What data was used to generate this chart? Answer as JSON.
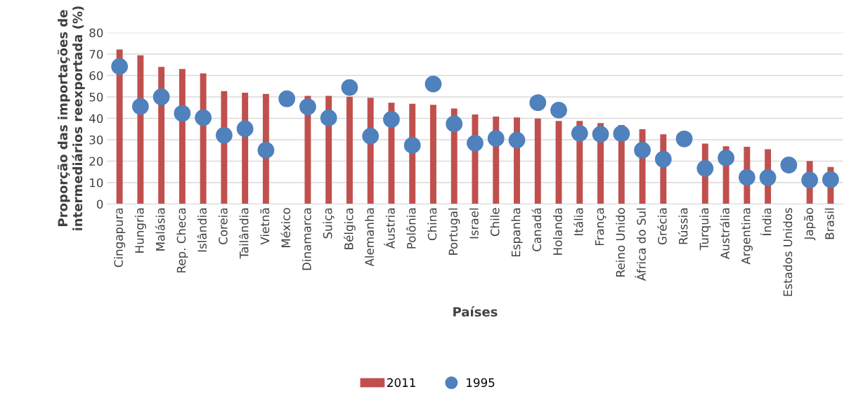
{
  "chart_data": {
    "type": "bar",
    "xlabel": "Países",
    "ylabel": "Proporção das importações de\nintermediários reexportada (%)",
    "categories": [
      "Cingapura",
      "Hungria",
      "Malásia",
      "Rep. Checa",
      "Islândia",
      "Coreia",
      "Tailândia",
      "Vietnã",
      "México",
      "Dinamarca",
      "Suiça",
      "Bélgica",
      "Alemanha",
      "Áustria",
      "Polônia",
      "China",
      "Portugal",
      "Israel",
      "Chile",
      "Espanha",
      "Canadá",
      "Holanda",
      "Itália",
      "França",
      "Reino Unido",
      "África do Sul",
      "Grécia",
      "Rússia",
      "Turquia",
      "Austrália",
      "Argentina",
      "Índia",
      "Estados Unidos",
      "Japão",
      "Brasil"
    ],
    "series": [
      {
        "name": "2011",
        "color": "#c0504d",
        "values": [
          72.1,
          69.4,
          64.0,
          63.0,
          61.0,
          52.7,
          52.0,
          51.4,
          null,
          50.5,
          50.5,
          50.1,
          49.6,
          47.3,
          46.8,
          46.3,
          44.6,
          41.8,
          40.8,
          40.4,
          39.9,
          38.8,
          38.8,
          37.8,
          36.9,
          34.9,
          32.5,
          null,
          28.2,
          27.0,
          26.7,
          25.6,
          null,
          20.1,
          17.3
        ]
      },
      {
        "name": "1995",
        "type": "scatter",
        "color": "#4f81bd",
        "marker": "circle",
        "values": [
          64.2,
          45.5,
          50.0,
          42.3,
          40.3,
          32.1,
          35.1,
          25.1,
          49.1,
          45.4,
          40.2,
          54.4,
          31.7,
          39.5,
          27.4,
          56.0,
          37.4,
          28.4,
          30.6,
          29.8,
          47.3,
          43.8,
          33.0,
          32.6,
          32.8,
          25.1,
          20.9,
          30.4,
          16.6,
          21.5,
          12.4,
          12.3,
          18.2,
          11.2,
          11.4
        ]
      }
    ],
    "ylim": [
      0,
      80
    ],
    "yticks": [
      0,
      10,
      20,
      30,
      40,
      50,
      60,
      70,
      80
    ],
    "grid": "y",
    "legend": "bottom"
  }
}
